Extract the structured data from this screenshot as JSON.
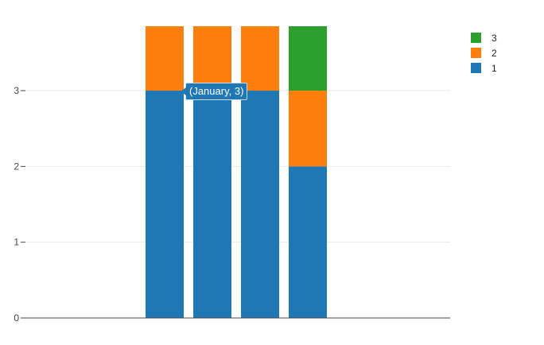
{
  "chart_data": {
    "type": "bar",
    "stacked": true,
    "title": "",
    "xlabel": "",
    "ylabel": "",
    "categories": [
      "",
      "",
      "",
      ""
    ],
    "series": [
      {
        "name": "1",
        "color": "#1f77b4",
        "values": [
          3,
          3,
          3,
          2
        ]
      },
      {
        "name": "2",
        "color": "#ff7f0e",
        "values": [
          1,
          1,
          1,
          1
        ]
      },
      {
        "name": "3",
        "color": "#2ca02c",
        "values": [
          0,
          0,
          0,
          1
        ]
      }
    ],
    "ylim": [
      0,
      3.85
    ],
    "yticks": [
      0,
      1,
      2,
      3
    ],
    "grid": true,
    "legend_position": "top-right",
    "legend_order": [
      "3",
      "2",
      "1"
    ]
  },
  "tooltip": {
    "text": "(January, 3)"
  },
  "legend": {
    "items": [
      {
        "label": "3",
        "color": "#2ca02c"
      },
      {
        "label": "2",
        "color": "#ff7f0e"
      },
      {
        "label": "1",
        "color": "#1f77b4"
      }
    ]
  },
  "axis": {
    "y_ticks": [
      "0",
      "1",
      "2",
      "3"
    ]
  }
}
